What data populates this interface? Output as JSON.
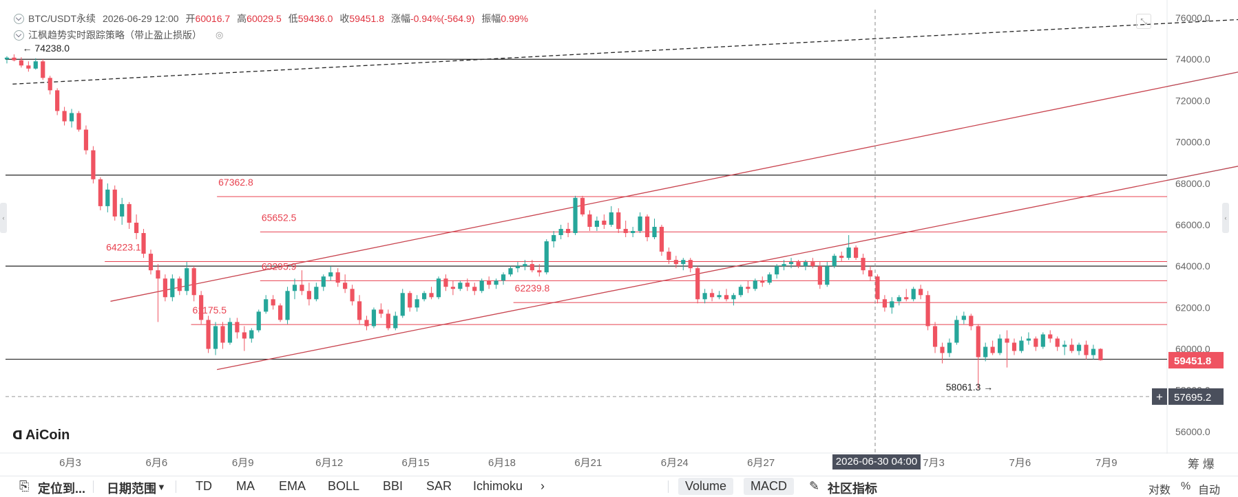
{
  "header": {
    "symbol": "BTC/USDT永续",
    "datetime": "2026-06-29 12:00",
    "open_label": "开",
    "open": "60016.7",
    "high_label": "高",
    "high": "60029.5",
    "low_label": "低",
    "low": "59436.0",
    "close_label": "收",
    "close": "59451.8",
    "change_label": "涨幅",
    "change": "-0.94%(-564.9)",
    "amp_label": "振幅",
    "amp": "0.99%",
    "strategy": "江枫趋势实时跟踪策略（带止盈止损版）"
  },
  "logo": {
    "text": "AiCoin"
  },
  "timeline_right": "筹 爆",
  "toolbar": {
    "locate": "定位到...",
    "date_range": "日期范围",
    "indicators": [
      "TD",
      "MA",
      "EMA",
      "BOLL",
      "BBI",
      "SAR",
      "Ichimoku"
    ],
    "more": "›",
    "volume": "Volume",
    "macd": "MACD",
    "community": "社区指标",
    "log": "对数",
    "percent": "%",
    "auto": "自动"
  },
  "colors": {
    "up": "#26a69a",
    "down": "#ef5361",
    "level": "#e8414f",
    "cyan": "#26c6da"
  },
  "chart_data": {
    "type": "candlestick",
    "y_ticks": [
      "76000.0",
      "74000.0",
      "72000.0",
      "70000.0",
      "68000.0",
      "66000.0",
      "64000.0",
      "62000.0",
      "60000.0",
      "58000.0",
      "56000.0"
    ],
    "ylim": [
      55000,
      76400
    ],
    "x_ticks": [
      "6月3",
      "6月6",
      "6月9",
      "6月12",
      "6月15",
      "6月18",
      "6月21",
      "6月24",
      "6月27",
      "7月3",
      "7月6",
      "7月9"
    ],
    "crosshair_date": "2026-06-30 04:00",
    "last_price": "59451.8",
    "crosshair_price": "57695.2",
    "crosshair_value": 57695.2,
    "horizontal_levels": [
      74000,
      68400,
      64000,
      59500
    ],
    "red_levels": [
      {
        "label": "67362.8",
        "value": 67362.8,
        "from_day": 7.3
      },
      {
        "label": "65652.5",
        "value": 65652.5,
        "from_day": 8.8
      },
      {
        "label": "64223.1",
        "value": 64223.1,
        "from_day": 3.4
      },
      {
        "label": "63295.9",
        "value": 63295.9,
        "from_day": 8.8
      },
      {
        "label": "62239.8",
        "value": 62239.8,
        "from_day": 17.6
      },
      {
        "label": "61175.5",
        "value": 61175.5,
        "from_day": 6.4
      }
    ],
    "high_marker": {
      "label": "74238.0",
      "value": 74238.0,
      "day": 0.3
    },
    "low_marker": {
      "label": "58061.3",
      "value": 58061.3,
      "day": 34.6
    },
    "trendlines": [
      {
        "style": "dashed",
        "color": "#222222",
        "from": [
          0.2,
          72800
        ],
        "to": [
          48.0,
          76300
        ]
      },
      {
        "style": "solid",
        "color": "#c8434e",
        "from": [
          3.6,
          62300
        ],
        "to": [
          48.5,
          75000
        ],
        "extend_color": "#26c6da"
      },
      {
        "style": "solid",
        "color": "#c8434e",
        "from": [
          7.3,
          59000
        ],
        "to": [
          47.0,
          70000
        ],
        "extend_color": "#26c6da"
      }
    ],
    "candles": [
      [
        74000,
        74150,
        73800,
        74080
      ],
      [
        74080,
        74238,
        73900,
        73950
      ],
      [
        73950,
        74100,
        73600,
        73700
      ],
      [
        73700,
        73900,
        73400,
        73550
      ],
      [
        73550,
        74050,
        73500,
        73900
      ],
      [
        73900,
        74000,
        73000,
        73100
      ],
      [
        73100,
        73200,
        72300,
        72500
      ],
      [
        72500,
        72600,
        71300,
        71500
      ],
      [
        71500,
        71700,
        70800,
        71000
      ],
      [
        71000,
        71600,
        70700,
        71400
      ],
      [
        71400,
        71500,
        70500,
        70600
      ],
      [
        70600,
        70800,
        69400,
        69600
      ],
      [
        69600,
        69800,
        68000,
        68200
      ],
      [
        68200,
        68300,
        66700,
        66900
      ],
      [
        66900,
        68000,
        66600,
        67700
      ],
      [
        67700,
        67900,
        66200,
        66400
      ],
      [
        66400,
        67300,
        66000,
        67000
      ],
      [
        67000,
        67100,
        65800,
        66100
      ],
      [
        66100,
        66500,
        65300,
        65600
      ],
      [
        65600,
        65800,
        64400,
        64600
      ],
      [
        64600,
        64800,
        63600,
        63800
      ],
      [
        63800,
        64100,
        61300,
        63400
      ],
      [
        63400,
        63600,
        62300,
        62500
      ],
      [
        62500,
        63600,
        62300,
        63400
      ],
      [
        63400,
        63500,
        62600,
        62800
      ],
      [
        62800,
        64200,
        62600,
        63900
      ],
      [
        63900,
        64000,
        62300,
        62600
      ],
      [
        62600,
        62800,
        61200,
        61400
      ],
      [
        61400,
        61600,
        59800,
        60000
      ],
      [
        60000,
        61300,
        59700,
        61100
      ],
      [
        61100,
        61300,
        60000,
        60300
      ],
      [
        60300,
        61500,
        60200,
        61300
      ],
      [
        61300,
        61500,
        60500,
        60800
      ],
      [
        60800,
        61100,
        59900,
        60500
      ],
      [
        60500,
        61000,
        60300,
        60900
      ],
      [
        60900,
        61900,
        60800,
        61800
      ],
      [
        61800,
        62600,
        61700,
        62400
      ],
      [
        62400,
        62600,
        61900,
        62100
      ],
      [
        62100,
        62200,
        61300,
        61400
      ],
      [
        61400,
        63000,
        61200,
        62800
      ],
      [
        62800,
        63400,
        62400,
        63100
      ],
      [
        63100,
        63800,
        62600,
        62800
      ],
      [
        62800,
        63200,
        62100,
        62400
      ],
      [
        62400,
        63200,
        62300,
        63000
      ],
      [
        63000,
        63600,
        62800,
        63500
      ],
      [
        63500,
        64000,
        63300,
        63700
      ],
      [
        63700,
        63900,
        63000,
        63200
      ],
      [
        63200,
        63600,
        62700,
        62900
      ],
      [
        62900,
        63100,
        62100,
        62300
      ],
      [
        62300,
        62600,
        61200,
        61400
      ],
      [
        61400,
        61600,
        60900,
        61100
      ],
      [
        61100,
        62000,
        61000,
        61900
      ],
      [
        61900,
        62200,
        61500,
        61700
      ],
      [
        61700,
        61900,
        60900,
        61000
      ],
      [
        61000,
        61800,
        60900,
        61600
      ],
      [
        61600,
        62900,
        61500,
        62700
      ],
      [
        62700,
        62800,
        61800,
        62000
      ],
      [
        62000,
        62600,
        61800,
        62400
      ],
      [
        62400,
        62800,
        62300,
        62700
      ],
      [
        62700,
        63000,
        62400,
        62500
      ],
      [
        62500,
        63500,
        62400,
        63400
      ],
      [
        63400,
        63600,
        62800,
        63000
      ],
      [
        63000,
        63300,
        62600,
        62900
      ],
      [
        62900,
        63300,
        62800,
        63200
      ],
      [
        63200,
        63400,
        62800,
        63000
      ],
      [
        63000,
        63200,
        62600,
        62800
      ],
      [
        62800,
        63400,
        62700,
        63300
      ],
      [
        63300,
        63500,
        62900,
        63100
      ],
      [
        63100,
        63400,
        62900,
        63300
      ],
      [
        63300,
        63700,
        63100,
        63600
      ],
      [
        63600,
        64000,
        63500,
        63900
      ],
      [
        63900,
        64200,
        63700,
        64000
      ],
      [
        64000,
        64300,
        63800,
        64100
      ],
      [
        64100,
        64300,
        63700,
        63800
      ],
      [
        63800,
        64100,
        63500,
        63700
      ],
      [
        63700,
        65300,
        63600,
        65200
      ],
      [
        65200,
        65700,
        64900,
        65500
      ],
      [
        65500,
        66000,
        65300,
        65800
      ],
      [
        65800,
        66100,
        65400,
        65600
      ],
      [
        65600,
        67400,
        65500,
        67300
      ],
      [
        67300,
        67400,
        66400,
        66500
      ],
      [
        66500,
        66700,
        65700,
        65900
      ],
      [
        65900,
        66400,
        65700,
        66200
      ],
      [
        66200,
        66500,
        65800,
        66000
      ],
      [
        66000,
        66900,
        65900,
        66600
      ],
      [
        66600,
        66800,
        65600,
        65800
      ],
      [
        65800,
        66200,
        65400,
        65600
      ],
      [
        65600,
        65900,
        65400,
        65700
      ],
      [
        65700,
        66600,
        65600,
        66400
      ],
      [
        66400,
        66500,
        65200,
        65400
      ],
      [
        65400,
        66300,
        65300,
        65900
      ],
      [
        65900,
        66000,
        64500,
        64700
      ],
      [
        64700,
        64900,
        64100,
        64300
      ],
      [
        64300,
        64500,
        63900,
        64100
      ],
      [
        64100,
        64400,
        63800,
        64300
      ],
      [
        64300,
        64400,
        63700,
        63900
      ],
      [
        63900,
        64000,
        62200,
        62400
      ],
      [
        62400,
        62900,
        62200,
        62700
      ],
      [
        62700,
        62900,
        62300,
        62500
      ],
      [
        62500,
        62800,
        62400,
        62600
      ],
      [
        62600,
        62900,
        62300,
        62400
      ],
      [
        62400,
        62700,
        62100,
        62600
      ],
      [
        62600,
        63100,
        62500,
        63000
      ],
      [
        63000,
        63300,
        62700,
        62900
      ],
      [
        62900,
        63400,
        62800,
        63300
      ],
      [
        63300,
        63500,
        63000,
        63200
      ],
      [
        63200,
        63700,
        63100,
        63600
      ],
      [
        63600,
        64100,
        63400,
        64000
      ],
      [
        64000,
        64300,
        63800,
        64100
      ],
      [
        64100,
        64400,
        63900,
        64200
      ],
      [
        64200,
        64300,
        63900,
        64000
      ],
      [
        64000,
        64300,
        63800,
        64200
      ],
      [
        64200,
        64400,
        63900,
        64000
      ],
      [
        64000,
        64200,
        62900,
        63100
      ],
      [
        63100,
        64200,
        63000,
        64000
      ],
      [
        64000,
        64600,
        63900,
        64500
      ],
      [
        64500,
        64700,
        64200,
        64400
      ],
      [
        64400,
        65500,
        64300,
        64900
      ],
      [
        64900,
        65000,
        64300,
        64400
      ],
      [
        64400,
        64600,
        63600,
        63800
      ],
      [
        63800,
        64000,
        63300,
        63500
      ],
      [
        63500,
        63600,
        62200,
        62400
      ],
      [
        62400,
        62600,
        61800,
        62000
      ],
      [
        62000,
        62500,
        61700,
        62300
      ],
      [
        62300,
        62600,
        62100,
        62500
      ],
      [
        62500,
        62900,
        62300,
        62400
      ],
      [
        62400,
        63000,
        62300,
        62900
      ],
      [
        62900,
        63100,
        62400,
        62600
      ],
      [
        62600,
        62800,
        60900,
        61100
      ],
      [
        61100,
        61300,
        59800,
        60100
      ],
      [
        60100,
        60300,
        59300,
        59800
      ],
      [
        59800,
        60500,
        59600,
        60300
      ],
      [
        60300,
        61600,
        60200,
        61400
      ],
      [
        61400,
        61800,
        61200,
        61600
      ],
      [
        61600,
        61700,
        60900,
        61100
      ],
      [
        61100,
        61200,
        58061,
        59600
      ],
      [
        59600,
        60300,
        59400,
        60100
      ],
      [
        60100,
        60400,
        59700,
        59800
      ],
      [
        59800,
        60700,
        59700,
        60500
      ],
      [
        60500,
        60900,
        59100,
        60300
      ],
      [
        60300,
        60500,
        59700,
        59900
      ],
      [
        59900,
        60600,
        59800,
        60400
      ],
      [
        60400,
        60800,
        60200,
        60500
      ],
      [
        60500,
        60600,
        59900,
        60100
      ],
      [
        60100,
        60800,
        60000,
        60700
      ],
      [
        60700,
        60900,
        60300,
        60500
      ],
      [
        60500,
        60600,
        59900,
        60100
      ],
      [
        60100,
        60400,
        59700,
        60200
      ],
      [
        60200,
        60500,
        59800,
        59900
      ],
      [
        59900,
        60300,
        59700,
        60200
      ],
      [
        60200,
        60400,
        59500,
        59700
      ],
      [
        59700,
        60200,
        59500,
        60000
      ],
      [
        60000,
        60029.5,
        59436,
        59451.8
      ]
    ]
  }
}
